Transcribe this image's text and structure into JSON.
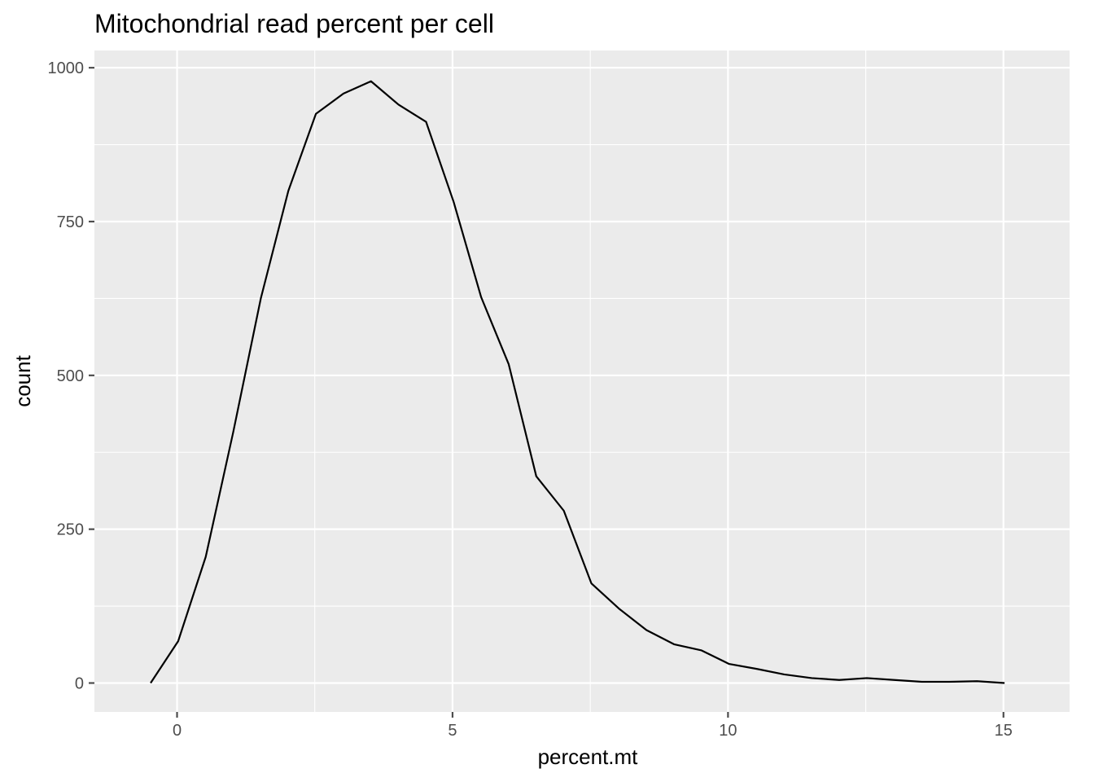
{
  "chart_data": {
    "type": "line",
    "title": "Mitochondrial read percent per cell",
    "xlabel": "percent.mt",
    "ylabel": "count",
    "xlim": [
      -1.5,
      16.2
    ],
    "ylim": [
      -47,
      1028
    ],
    "x_ticks": [
      0,
      5,
      10,
      15
    ],
    "x_tick_labels": [
      "0",
      "5",
      "10",
      "15"
    ],
    "y_ticks": [
      0,
      250,
      500,
      750,
      1000
    ],
    "y_tick_labels": [
      "0",
      "250",
      "500",
      "750",
      "1000"
    ],
    "grid": true,
    "colors": {
      "panel": "#ebebeb",
      "grid": "#ffffff",
      "line": "#000000",
      "ticks": "#4d4d4d"
    },
    "series": [
      {
        "x": [
          -0.48,
          0.02,
          0.52,
          1.02,
          1.52,
          2.02,
          2.52,
          3.02,
          3.52,
          4.02,
          4.52,
          5.02,
          5.52,
          6.02,
          6.52,
          7.02,
          7.52,
          8.02,
          8.52,
          9.02,
          9.52,
          10.02,
          10.52,
          11.02,
          11.52,
          12.02,
          12.52,
          13.02,
          13.52,
          14.02,
          14.52,
          15.02
        ],
        "y": [
          0,
          68,
          205,
          408,
          625,
          800,
          925,
          958,
          978,
          940,
          912,
          782,
          627,
          518,
          336,
          280,
          162,
          121,
          86,
          63,
          53,
          31,
          23,
          14,
          8,
          5,
          8,
          5,
          2,
          2,
          3,
          0
        ]
      }
    ]
  }
}
